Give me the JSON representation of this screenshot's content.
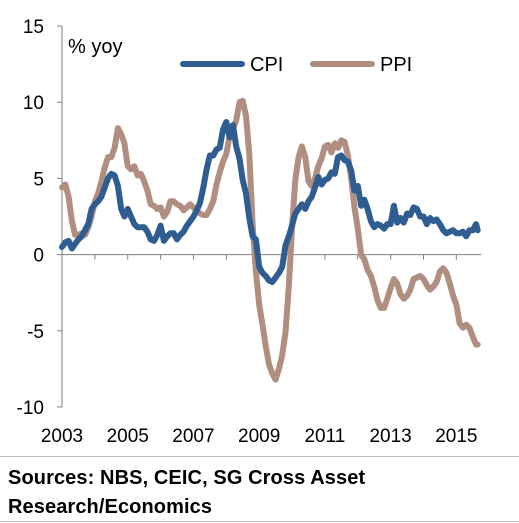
{
  "chart_data": {
    "type": "line",
    "title": "",
    "ylabel": "% yoy",
    "xlabel": "",
    "xlim": [
      2003.0,
      2015.75
    ],
    "ylim": [
      -10,
      15
    ],
    "y_ticks": [
      "15",
      "10",
      "5",
      "0",
      "-5",
      "-10"
    ],
    "x_ticks": [
      "2003",
      "2005",
      "2007",
      "2009",
      "2011",
      "2013",
      "2015"
    ],
    "grid": false,
    "legend": "top-right",
    "series": [
      {
        "name": "CPI",
        "color": "#2f5d91",
        "points": [
          [
            2003.0,
            0.5
          ],
          [
            2003.1,
            0.8
          ],
          [
            2003.2,
            0.9
          ],
          [
            2003.3,
            0.4
          ],
          [
            2003.4,
            0.7
          ],
          [
            2003.5,
            1.0
          ],
          [
            2003.6,
            1.2
          ],
          [
            2003.8,
            2.0
          ],
          [
            2003.9,
            3.0
          ],
          [
            2004.0,
            3.3
          ],
          [
            2004.1,
            3.5
          ],
          [
            2004.2,
            3.8
          ],
          [
            2004.3,
            4.4
          ],
          [
            2004.4,
            5.0
          ],
          [
            2004.5,
            5.3
          ],
          [
            2004.6,
            5.2
          ],
          [
            2004.7,
            4.5
          ],
          [
            2004.8,
            3.0
          ],
          [
            2004.9,
            2.5
          ],
          [
            2005.0,
            3.0
          ],
          [
            2005.1,
            2.5
          ],
          [
            2005.2,
            2.0
          ],
          [
            2005.3,
            1.8
          ],
          [
            2005.4,
            1.8
          ],
          [
            2005.5,
            1.8
          ],
          [
            2005.6,
            1.5
          ],
          [
            2005.7,
            1.0
          ],
          [
            2005.8,
            0.9
          ],
          [
            2005.9,
            1.3
          ],
          [
            2006.0,
            1.9
          ],
          [
            2006.1,
            0.9
          ],
          [
            2006.2,
            1.2
          ],
          [
            2006.3,
            1.4
          ],
          [
            2006.4,
            1.4
          ],
          [
            2006.5,
            1.0
          ],
          [
            2006.6,
            1.3
          ],
          [
            2006.7,
            1.5
          ],
          [
            2006.8,
            1.9
          ],
          [
            2006.9,
            2.2
          ],
          [
            2007.0,
            2.5
          ],
          [
            2007.1,
            2.9
          ],
          [
            2007.2,
            3.4
          ],
          [
            2007.3,
            4.4
          ],
          [
            2007.4,
            5.6
          ],
          [
            2007.5,
            6.5
          ],
          [
            2007.6,
            6.5
          ],
          [
            2007.7,
            6.9
          ],
          [
            2007.8,
            7.0
          ],
          [
            2007.9,
            8.2
          ],
          [
            2008.0,
            8.7
          ],
          [
            2008.1,
            7.7
          ],
          [
            2008.2,
            8.5
          ],
          [
            2008.3,
            7.1
          ],
          [
            2008.4,
            6.3
          ],
          [
            2008.5,
            4.9
          ],
          [
            2008.6,
            4.0
          ],
          [
            2008.7,
            2.4
          ],
          [
            2008.8,
            1.2
          ],
          [
            2008.9,
            1.0
          ],
          [
            2009.0,
            -0.8
          ],
          [
            2009.1,
            -1.2
          ],
          [
            2009.2,
            -1.4
          ],
          [
            2009.3,
            -1.7
          ],
          [
            2009.4,
            -1.8
          ],
          [
            2009.5,
            -1.5
          ],
          [
            2009.6,
            -1.2
          ],
          [
            2009.7,
            -0.8
          ],
          [
            2009.8,
            0.6
          ],
          [
            2009.9,
            1.2
          ],
          [
            2010.0,
            1.9
          ],
          [
            2010.1,
            2.7
          ],
          [
            2010.2,
            3.0
          ],
          [
            2010.3,
            3.3
          ],
          [
            2010.4,
            3.0
          ],
          [
            2010.5,
            3.5
          ],
          [
            2010.6,
            3.8
          ],
          [
            2010.7,
            4.4
          ],
          [
            2010.8,
            5.1
          ],
          [
            2010.9,
            4.6
          ],
          [
            2011.0,
            4.9
          ],
          [
            2011.1,
            5.0
          ],
          [
            2011.2,
            5.4
          ],
          [
            2011.3,
            5.3
          ],
          [
            2011.4,
            6.4
          ],
          [
            2011.5,
            6.5
          ],
          [
            2011.6,
            6.2
          ],
          [
            2011.7,
            6.1
          ],
          [
            2011.8,
            5.5
          ],
          [
            2011.9,
            4.2
          ],
          [
            2012.0,
            4.5
          ],
          [
            2012.1,
            3.2
          ],
          [
            2012.2,
            3.6
          ],
          [
            2012.3,
            3.0
          ],
          [
            2012.4,
            2.2
          ],
          [
            2012.5,
            1.8
          ],
          [
            2012.6,
            2.0
          ],
          [
            2012.7,
            1.9
          ],
          [
            2012.8,
            1.7
          ],
          [
            2012.9,
            2.0
          ],
          [
            2013.0,
            2.0
          ],
          [
            2013.1,
            3.2
          ],
          [
            2013.2,
            2.1
          ],
          [
            2013.3,
            2.4
          ],
          [
            2013.4,
            2.1
          ],
          [
            2013.5,
            2.7
          ],
          [
            2013.6,
            2.6
          ],
          [
            2013.7,
            3.1
          ],
          [
            2013.8,
            3.0
          ],
          [
            2013.9,
            2.5
          ],
          [
            2014.0,
            2.5
          ],
          [
            2014.1,
            2.0
          ],
          [
            2014.2,
            2.4
          ],
          [
            2014.3,
            2.2
          ],
          [
            2014.4,
            2.3
          ],
          [
            2014.5,
            2.0
          ],
          [
            2014.6,
            1.6
          ],
          [
            2014.7,
            1.4
          ],
          [
            2014.8,
            1.5
          ],
          [
            2014.9,
            1.6
          ],
          [
            2015.0,
            1.4
          ],
          [
            2015.1,
            1.4
          ],
          [
            2015.2,
            1.5
          ],
          [
            2015.3,
            1.2
          ],
          [
            2015.4,
            1.6
          ],
          [
            2015.5,
            1.6
          ],
          [
            2015.6,
            2.0
          ],
          [
            2015.65,
            1.6
          ]
        ]
      },
      {
        "name": "PPI",
        "color": "#b08f80",
        "points": [
          [
            2003.0,
            4.4
          ],
          [
            2003.1,
            4.6
          ],
          [
            2003.2,
            3.8
          ],
          [
            2003.3,
            2.2
          ],
          [
            2003.4,
            1.3
          ],
          [
            2003.5,
            1.3
          ],
          [
            2003.6,
            1.4
          ],
          [
            2003.7,
            1.3
          ],
          [
            2003.8,
            1.8
          ],
          [
            2003.9,
            2.5
          ],
          [
            2004.0,
            3.5
          ],
          [
            2004.1,
            4.0
          ],
          [
            2004.2,
            4.8
          ],
          [
            2004.3,
            5.7
          ],
          [
            2004.4,
            6.4
          ],
          [
            2004.5,
            6.4
          ],
          [
            2004.6,
            7.0
          ],
          [
            2004.7,
            8.3
          ],
          [
            2004.8,
            7.9
          ],
          [
            2004.9,
            7.3
          ],
          [
            2005.0,
            5.8
          ],
          [
            2005.1,
            5.6
          ],
          [
            2005.2,
            5.8
          ],
          [
            2005.3,
            5.2
          ],
          [
            2005.4,
            5.3
          ],
          [
            2005.5,
            4.8
          ],
          [
            2005.6,
            4.2
          ],
          [
            2005.7,
            3.3
          ],
          [
            2005.8,
            3.2
          ],
          [
            2005.9,
            3.0
          ],
          [
            2006.0,
            3.1
          ],
          [
            2006.1,
            2.5
          ],
          [
            2006.2,
            2.8
          ],
          [
            2006.3,
            3.5
          ],
          [
            2006.4,
            3.5
          ],
          [
            2006.5,
            3.3
          ],
          [
            2006.6,
            3.2
          ],
          [
            2006.7,
            2.9
          ],
          [
            2006.8,
            3.1
          ],
          [
            2006.9,
            3.3
          ],
          [
            2007.0,
            3.1
          ],
          [
            2007.1,
            2.9
          ],
          [
            2007.2,
            2.7
          ],
          [
            2007.3,
            2.6
          ],
          [
            2007.4,
            2.6
          ],
          [
            2007.5,
            3.0
          ],
          [
            2007.6,
            3.5
          ],
          [
            2007.7,
            4.6
          ],
          [
            2007.8,
            5.4
          ],
          [
            2007.9,
            6.1
          ],
          [
            2008.0,
            6.6
          ],
          [
            2008.1,
            7.8
          ],
          [
            2008.2,
            8.2
          ],
          [
            2008.3,
            8.8
          ],
          [
            2008.4,
            10.0
          ],
          [
            2008.5,
            10.1
          ],
          [
            2008.6,
            9.1
          ],
          [
            2008.7,
            6.6
          ],
          [
            2008.8,
            2.0
          ],
          [
            2008.9,
            -1.1
          ],
          [
            2009.0,
            -3.3
          ],
          [
            2009.1,
            -4.6
          ],
          [
            2009.2,
            -6.0
          ],
          [
            2009.3,
            -7.2
          ],
          [
            2009.4,
            -7.8
          ],
          [
            2009.5,
            -8.2
          ],
          [
            2009.6,
            -7.5
          ],
          [
            2009.7,
            -6.6
          ],
          [
            2009.8,
            -5.1
          ],
          [
            2009.9,
            -2.1
          ],
          [
            2010.0,
            1.7
          ],
          [
            2010.1,
            4.9
          ],
          [
            2010.2,
            6.4
          ],
          [
            2010.3,
            7.1
          ],
          [
            2010.4,
            6.4
          ],
          [
            2010.5,
            4.8
          ],
          [
            2010.6,
            4.5
          ],
          [
            2010.7,
            5.0
          ],
          [
            2010.8,
            5.8
          ],
          [
            2010.9,
            6.3
          ],
          [
            2011.0,
            7.1
          ],
          [
            2011.1,
            7.2
          ],
          [
            2011.2,
            6.7
          ],
          [
            2011.3,
            7.3
          ],
          [
            2011.4,
            7.0
          ],
          [
            2011.5,
            7.5
          ],
          [
            2011.6,
            7.4
          ],
          [
            2011.7,
            6.5
          ],
          [
            2011.8,
            5.0
          ],
          [
            2011.9,
            3.1
          ],
          [
            2012.0,
            1.7
          ],
          [
            2012.1,
            0.0
          ],
          [
            2012.2,
            -0.3
          ],
          [
            2012.3,
            -1.0
          ],
          [
            2012.4,
            -1.4
          ],
          [
            2012.5,
            -2.1
          ],
          [
            2012.6,
            -3.0
          ],
          [
            2012.7,
            -3.5
          ],
          [
            2012.8,
            -3.5
          ],
          [
            2012.9,
            -2.9
          ],
          [
            2013.0,
            -2.2
          ],
          [
            2013.1,
            -1.6
          ],
          [
            2013.2,
            -1.9
          ],
          [
            2013.3,
            -2.6
          ],
          [
            2013.4,
            -2.9
          ],
          [
            2013.5,
            -2.7
          ],
          [
            2013.6,
            -2.3
          ],
          [
            2013.7,
            -1.6
          ],
          [
            2013.8,
            -1.5
          ],
          [
            2013.9,
            -1.4
          ],
          [
            2014.0,
            -1.6
          ],
          [
            2014.1,
            -2.0
          ],
          [
            2014.2,
            -2.3
          ],
          [
            2014.3,
            -2.1
          ],
          [
            2014.4,
            -1.8
          ],
          [
            2014.5,
            -1.1
          ],
          [
            2014.6,
            -0.9
          ],
          [
            2014.7,
            -1.2
          ],
          [
            2014.8,
            -1.9
          ],
          [
            2014.9,
            -2.7
          ],
          [
            2015.0,
            -3.3
          ],
          [
            2015.1,
            -4.5
          ],
          [
            2015.2,
            -4.8
          ],
          [
            2015.3,
            -4.6
          ],
          [
            2015.4,
            -4.8
          ],
          [
            2015.5,
            -5.4
          ],
          [
            2015.6,
            -5.9
          ],
          [
            2015.65,
            -5.9
          ]
        ]
      }
    ]
  },
  "footer": {
    "source_line1": "Sources: NBS, CEIC, SG Cross Asset",
    "source_line2": "Research/Economics"
  }
}
